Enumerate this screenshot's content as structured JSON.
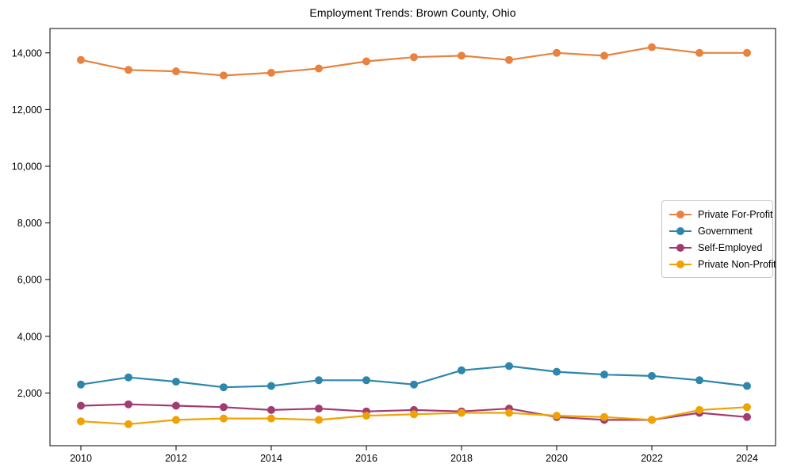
{
  "chart_data": {
    "type": "line",
    "title": "Employment Trends: Brown County, Ohio",
    "xlabel": "",
    "ylabel": "",
    "grid": false,
    "legend_position": "center right",
    "xlim": [
      2009.35,
      2024.6
    ],
    "ylim": [
      140,
      14860
    ],
    "x": [
      2010,
      2011,
      2012,
      2013,
      2014,
      2015,
      2016,
      2017,
      2018,
      2019,
      2020,
      2021,
      2022,
      2023,
      2024
    ],
    "x_ticks": [
      {
        "value": 2010,
        "label": "2010"
      },
      {
        "value": 2012,
        "label": "2012"
      },
      {
        "value": 2014,
        "label": "2014"
      },
      {
        "value": 2016,
        "label": "2016"
      },
      {
        "value": 2018,
        "label": "2018"
      },
      {
        "value": 2020,
        "label": "2020"
      },
      {
        "value": 2022,
        "label": "2022"
      },
      {
        "value": 2024,
        "label": "2024"
      }
    ],
    "y_ticks": [
      {
        "value": 2000,
        "label": "2,000"
      },
      {
        "value": 4000,
        "label": "4,000"
      },
      {
        "value": 6000,
        "label": "6,000"
      },
      {
        "value": 8000,
        "label": "8,000"
      },
      {
        "value": 10000,
        "label": "10,000"
      },
      {
        "value": 12000,
        "label": "12,000"
      },
      {
        "value": 14000,
        "label": "14,000"
      }
    ],
    "series": [
      {
        "name": "Private For-Profit",
        "color": "#E8823E",
        "values": [
          13750,
          13400,
          13350,
          13200,
          13300,
          13450,
          13700,
          13850,
          13900,
          13750,
          14000,
          13900,
          14200,
          14000,
          14000
        ]
      },
      {
        "name": "Government",
        "color": "#2E86AB",
        "values": [
          2300,
          2550,
          2400,
          2200,
          2250,
          2450,
          2450,
          2300,
          2800,
          2950,
          2750,
          2650,
          2600,
          2450,
          2250
        ]
      },
      {
        "name": "Self-Employed",
        "color": "#A23B72",
        "values": [
          1550,
          1600,
          1550,
          1500,
          1400,
          1450,
          1350,
          1400,
          1350,
          1450,
          1150,
          1050,
          1050,
          1300,
          1150
        ]
      },
      {
        "name": "Private Non-Profit",
        "color": "#F0A202",
        "values": [
          1000,
          900,
          1050,
          1100,
          1100,
          1050,
          1200,
          1250,
          1300,
          1300,
          1200,
          1150,
          1050,
          1400,
          1500
        ]
      }
    ]
  }
}
